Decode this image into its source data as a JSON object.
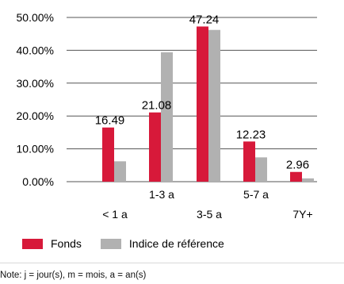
{
  "chart_data": {
    "type": "bar",
    "categories": [
      "< 1 a",
      "1-3 a",
      "3-5 a",
      "5-7 a",
      "7Y+"
    ],
    "series": [
      {
        "name": "Fonds",
        "values": [
          16.49,
          21.08,
          47.24,
          12.23,
          2.96
        ],
        "color": "#d7193a"
      },
      {
        "name": "Indice de référence",
        "values": [
          6.2,
          39.4,
          46.2,
          7.4,
          1.0
        ],
        "color": "#b1b1b1"
      }
    ],
    "data_labels": [
      "16.49",
      "21.08",
      "47.24",
      "12.23",
      "2.96"
    ],
    "y_ticks": [
      "0.00%",
      "10.00%",
      "20.00%",
      "30.00%",
      "40.00%",
      "50.00%"
    ],
    "ylim": [
      0,
      50
    ],
    "grid": true,
    "legend_position": "bottom-left"
  },
  "note": "Note: j = jour(s), m = mois, a = an(s)"
}
